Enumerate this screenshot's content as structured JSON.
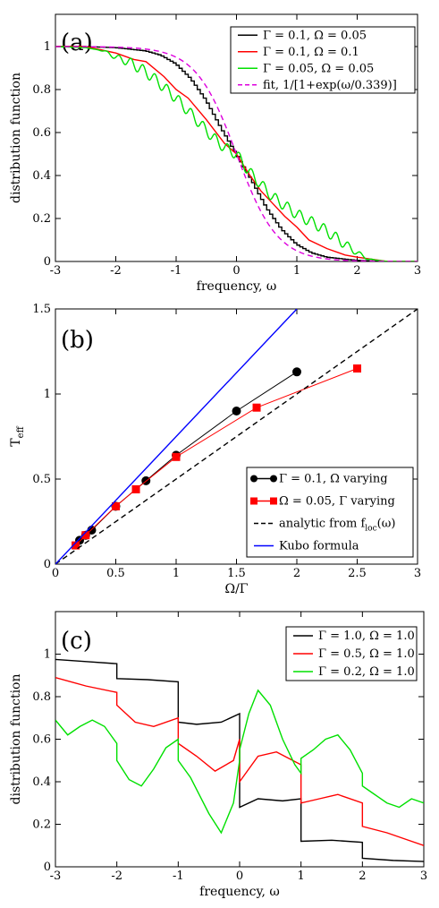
{
  "figure": {
    "panels": [
      {
        "panel_label": "(a)",
        "frame": {
          "x0": 62,
          "x1": 467,
          "y0": 16,
          "y1": 292
        },
        "legend_box": {
          "x": 258,
          "y": 30,
          "w": 206,
          "h": 74
        },
        "panel_label_pos": {
          "x": 68,
          "y": 56
        }
      },
      {
        "panel_label": "(b)",
        "frame": {
          "x0": 62,
          "x1": 467,
          "y0": 345,
          "y1": 630
        },
        "legend_box": {
          "x": 276,
          "y": 522,
          "w": 186,
          "h": 100
        },
        "panel_label_pos": {
          "x": 68,
          "y": 388
        }
      },
      {
        "panel_label": "(c)",
        "frame": {
          "x0": 62,
          "x1": 474,
          "y0": 683,
          "y1": 968
        },
        "legend_box": {
          "x": 320,
          "y": 700,
          "w": 146,
          "h": 60
        },
        "panel_label_pos": {
          "x": 68,
          "y": 724
        }
      }
    ]
  },
  "chart_data": [
    {
      "type": "line",
      "panel": "(a)",
      "xlabel": "frequency, ω",
      "ylabel": "distribution function",
      "xlim": [
        -3,
        3
      ],
      "ylim": [
        0,
        1.15
      ],
      "xticks": [
        -3,
        -2,
        -1,
        0,
        1,
        2,
        3
      ],
      "yticks": [
        0,
        0.2,
        0.4,
        0.6,
        0.8,
        1
      ],
      "legend_position": "top-right",
      "series": [
        {
          "name": "Γ = 0.1, Ω = 0.05",
          "color": "#000000",
          "style": "staircase",
          "x": [
            -3,
            -2.5,
            -2,
            -1.5,
            -1.25,
            -1,
            -0.75,
            -0.5,
            -0.25,
            0,
            0.25,
            0.5,
            0.75,
            1,
            1.25,
            1.5,
            2,
            2.5,
            3
          ],
          "y": [
            1,
            1,
            0.995,
            0.98,
            0.96,
            0.92,
            0.85,
            0.75,
            0.62,
            0.5,
            0.38,
            0.25,
            0.15,
            0.08,
            0.04,
            0.02,
            0.005,
            0,
            0
          ]
        },
        {
          "name": "Γ = 0.1, Ω = 0.1",
          "color": "#ff0000",
          "style": "line",
          "x": [
            -3,
            -2.5,
            -2,
            -1.7,
            -1.5,
            -1.2,
            -1,
            -0.8,
            -0.5,
            -0.2,
            0,
            0.2,
            0.4,
            0.6,
            0.8,
            1,
            1.2,
            1.5,
            1.8,
            2,
            2.5,
            3
          ],
          "y": [
            1,
            1,
            0.97,
            0.94,
            0.93,
            0.86,
            0.8,
            0.76,
            0.66,
            0.55,
            0.5,
            0.41,
            0.33,
            0.27,
            0.21,
            0.16,
            0.1,
            0.06,
            0.03,
            0.02,
            0,
            0
          ]
        },
        {
          "name": "Γ = 0.05, Ω = 0.05",
          "color": "#00e000",
          "style": "oscillating",
          "x": [
            -3,
            -2.5,
            -2.2,
            -2,
            -1.8,
            -1.6,
            -1.4,
            -1.2,
            -1,
            -0.8,
            -0.6,
            -0.4,
            -0.2,
            0,
            0.2,
            0.4,
            0.6,
            0.8,
            1,
            1.2,
            1.4,
            1.6,
            1.8,
            2,
            2.2,
            2.5,
            3
          ],
          "y": [
            1,
            0.995,
            0.98,
            0.95,
            0.93,
            0.9,
            0.86,
            0.81,
            0.76,
            0.7,
            0.64,
            0.58,
            0.53,
            0.5,
            0.42,
            0.36,
            0.3,
            0.26,
            0.22,
            0.19,
            0.16,
            0.12,
            0.08,
            0.04,
            0.01,
            0,
            0
          ]
        },
        {
          "name": "fit, 1/[1+exp(ω/0.339)]",
          "color": "#dd00dd",
          "style": "dashed",
          "T": 0.339
        }
      ]
    },
    {
      "type": "line",
      "panel": "(b)",
      "xlabel": "Ω/Γ",
      "ylabel": "T",
      "ylabel_subscript": "eff",
      "xlim": [
        0,
        3
      ],
      "ylim": [
        0,
        1.5
      ],
      "xticks": [
        0,
        0.5,
        1,
        1.5,
        2,
        2.5,
        3
      ],
      "yticks": [
        0,
        0.5,
        1,
        1.5
      ],
      "legend_position": "bottom-right",
      "series": [
        {
          "name": "Γ = 0.1, Ω varying",
          "color": "#000000",
          "marker": "circle",
          "x": [
            0.2,
            0.25,
            0.3,
            0.5,
            0.75,
            1.0,
            1.5,
            2.0
          ],
          "y": [
            0.14,
            0.17,
            0.2,
            0.34,
            0.49,
            0.64,
            0.9,
            1.13
          ]
        },
        {
          "name": "Ω = 0.05, Γ varying",
          "color": "#ff0000",
          "marker": "square",
          "x": [
            0.167,
            0.25,
            0.5,
            0.667,
            1.0,
            1.667,
            2.5
          ],
          "y": [
            0.11,
            0.17,
            0.34,
            0.44,
            0.63,
            0.92,
            1.15
          ]
        },
        {
          "name": "analytic from f",
          "name_subscript": "loc",
          "name_suffix": "(ω)",
          "color": "#000000",
          "style": "dashed",
          "x": [
            0,
            3
          ],
          "y": [
            0,
            1.5
          ]
        },
        {
          "name": "Kubo formula",
          "color": "#0000ff",
          "style": "line",
          "x": [
            0,
            2.0
          ],
          "y": [
            0,
            1.5
          ]
        }
      ]
    },
    {
      "type": "line",
      "panel": "(c)",
      "xlabel": "frequency, ω",
      "ylabel": "distribution function",
      "xlim": [
        -3,
        3
      ],
      "ylim": [
        0,
        1.2
      ],
      "xticks": [
        -3,
        -2,
        -1,
        0,
        1,
        2,
        3
      ],
      "yticks": [
        0,
        0.2,
        0.4,
        0.6,
        0.8,
        1
      ],
      "legend_position": "top-right",
      "series": [
        {
          "name": "Γ = 1.0, Ω = 1.0",
          "color": "#000000",
          "x": [
            -3,
            -2.5,
            -2,
            -2,
            -1.5,
            -1,
            -1,
            -0.7,
            -0.3,
            0,
            0,
            0.3,
            0.7,
            1,
            1,
            1.5,
            2,
            2,
            2.5,
            3
          ],
          "y": [
            0.975,
            0.965,
            0.955,
            0.885,
            0.88,
            0.87,
            0.68,
            0.67,
            0.68,
            0.72,
            0.28,
            0.32,
            0.31,
            0.32,
            0.12,
            0.125,
            0.115,
            0.04,
            0.03,
            0.025
          ]
        },
        {
          "name": "Γ = 0.5, Ω = 1.0",
          "color": "#ff0000",
          "x": [
            -3,
            -2.5,
            -2,
            -2,
            -1.7,
            -1.4,
            -1,
            -1,
            -0.7,
            -0.4,
            -0.1,
            0,
            0,
            0.3,
            0.6,
            1,
            1,
            1.3,
            1.6,
            2,
            2,
            2.4,
            2.7,
            3
          ],
          "y": [
            0.89,
            0.85,
            0.82,
            0.76,
            0.68,
            0.66,
            0.7,
            0.58,
            0.52,
            0.45,
            0.5,
            0.6,
            0.4,
            0.52,
            0.54,
            0.48,
            0.3,
            0.32,
            0.34,
            0.3,
            0.19,
            0.16,
            0.13,
            0.1
          ]
        },
        {
          "name": "Γ = 0.2, Ω = 1.0",
          "color": "#00e000",
          "x": [
            -3,
            -2.8,
            -2.6,
            -2.4,
            -2.2,
            -2,
            -2,
            -1.8,
            -1.6,
            -1.4,
            -1.2,
            -1,
            -1,
            -0.8,
            -0.5,
            -0.3,
            -0.1,
            0,
            0,
            0.15,
            0.3,
            0.5,
            0.7,
            0.9,
            1,
            1,
            1.2,
            1.4,
            1.6,
            1.8,
            2,
            2,
            2.2,
            2.4,
            2.6,
            2.8,
            3
          ],
          "y": [
            0.69,
            0.62,
            0.66,
            0.69,
            0.66,
            0.58,
            0.5,
            0.41,
            0.38,
            0.46,
            0.56,
            0.6,
            0.5,
            0.42,
            0.25,
            0.16,
            0.3,
            0.5,
            0.55,
            0.72,
            0.83,
            0.76,
            0.6,
            0.48,
            0.44,
            0.51,
            0.55,
            0.6,
            0.62,
            0.55,
            0.44,
            0.38,
            0.34,
            0.3,
            0.28,
            0.32,
            0.3
          ]
        }
      ]
    }
  ]
}
